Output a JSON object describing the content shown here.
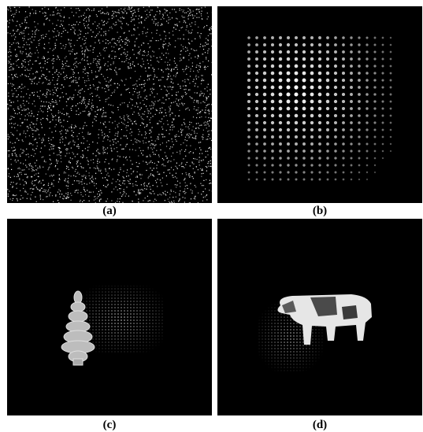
{
  "figure": {
    "panels": [
      {
        "id": "a",
        "label": "(a)",
        "content": "random-dot-noise"
      },
      {
        "id": "b",
        "label": "(b)",
        "content": "dot-grid-pattern"
      },
      {
        "id": "c",
        "label": "(c)",
        "content": "tree-with-textured-patch"
      },
      {
        "id": "d",
        "label": "(d)",
        "content": "cow-with-textured-patch"
      }
    ]
  },
  "colors": {
    "background": "#000000",
    "foreground": "#ffffff",
    "page": "#ffffff"
  }
}
